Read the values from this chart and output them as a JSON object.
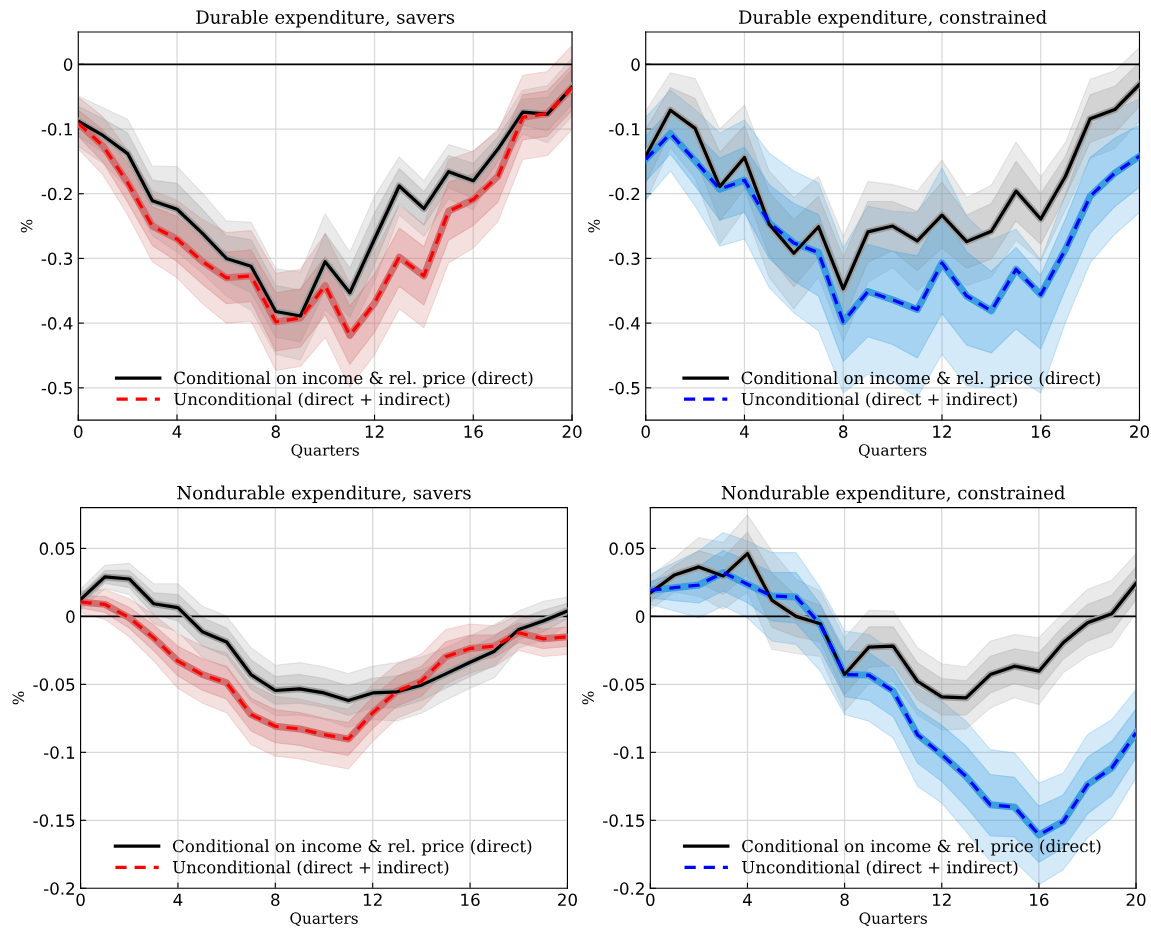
{
  "chart_data": [
    {
      "type": "line",
      "title": "Durable expenditure, savers",
      "xlabel": "Quarters",
      "ylabel": "%",
      "x": [
        0,
        1,
        2,
        3,
        4,
        5,
        6,
        7,
        8,
        9,
        10,
        11,
        12,
        13,
        14,
        15,
        16,
        17,
        18,
        19,
        20
      ],
      "xlim": [
        0,
        20
      ],
      "xticks": [
        0,
        4,
        8,
        12,
        16,
        20
      ],
      "ylim": [
        -0.55,
        0.05
      ],
      "yticks": [
        -0.5,
        -0.4,
        -0.3,
        -0.2,
        -0.1,
        0
      ],
      "grid": true,
      "legend": "bottom",
      "ref_lines": [
        {
          "axis": "y",
          "value": 0,
          "color": "#000000"
        }
      ],
      "series": [
        {
          "color": "#a0a0a0",
          "values": [
            -0.088,
            -0.11,
            -0.138,
            -0.211,
            -0.224,
            -0.26,
            -0.3,
            -0.312,
            -0.382,
            -0.389,
            -0.305,
            -0.353,
            -0.27,
            -0.188,
            -0.223,
            -0.166,
            -0.18,
            -0.131,
            -0.074,
            -0.077,
            -0.035
          ],
          "lower": [
            -0.127,
            -0.153,
            -0.191,
            -0.265,
            -0.29,
            -0.322,
            -0.358,
            -0.38,
            -0.448,
            -0.457,
            -0.379,
            -0.416,
            -0.336,
            -0.233,
            -0.266,
            -0.208,
            -0.225,
            -0.162,
            -0.108,
            -0.121,
            -0.08
          ],
          "upper": [
            -0.049,
            -0.067,
            -0.085,
            -0.157,
            -0.158,
            -0.198,
            -0.242,
            -0.244,
            -0.316,
            -0.321,
            -0.231,
            -0.29,
            -0.204,
            -0.143,
            -0.18,
            -0.124,
            -0.135,
            -0.1,
            -0.04,
            -0.033,
            0.01
          ]
        },
        {
          "color": "#d07070",
          "values": [
            -0.091,
            -0.126,
            -0.183,
            -0.25,
            -0.27,
            -0.304,
            -0.33,
            -0.327,
            -0.398,
            -0.392,
            -0.342,
            -0.419,
            -0.369,
            -0.298,
            -0.327,
            -0.227,
            -0.209,
            -0.173,
            -0.082,
            -0.076,
            -0.036
          ],
          "lower": [
            -0.131,
            -0.171,
            -0.233,
            -0.305,
            -0.33,
            -0.369,
            -0.4,
            -0.397,
            -0.473,
            -0.467,
            -0.422,
            -0.499,
            -0.449,
            -0.378,
            -0.407,
            -0.307,
            -0.284,
            -0.243,
            -0.147,
            -0.141,
            -0.101
          ],
          "upper": [
            -0.051,
            -0.081,
            -0.133,
            -0.195,
            -0.21,
            -0.239,
            -0.26,
            -0.257,
            -0.323,
            -0.317,
            -0.262,
            -0.339,
            -0.289,
            -0.218,
            -0.247,
            -0.147,
            -0.134,
            -0.103,
            -0.017,
            -0.011,
            0.029
          ]
        },
        {
          "name": "Conditional on income & rel. price (direct)",
          "color": "#000000",
          "line_style": "solid",
          "values": [
            -0.088,
            -0.11,
            -0.138,
            -0.211,
            -0.224,
            -0.26,
            -0.3,
            -0.312,
            -0.382,
            -0.389,
            -0.305,
            -0.353,
            -0.27,
            -0.188,
            -0.223,
            -0.166,
            -0.18,
            -0.131,
            -0.074,
            -0.077,
            -0.035
          ],
          "lower": [
            -0.111,
            -0.136,
            -0.17,
            -0.243,
            -0.264,
            -0.297,
            -0.335,
            -0.353,
            -0.422,
            -0.429,
            -0.349,
            -0.391,
            -0.31,
            -0.215,
            -0.249,
            -0.191,
            -0.207,
            -0.15,
            -0.094,
            -0.103,
            -0.062
          ],
          "upper": [
            -0.065,
            -0.084,
            -0.106,
            -0.179,
            -0.184,
            -0.223,
            -0.265,
            -0.271,
            -0.342,
            -0.349,
            -0.261,
            -0.315,
            -0.23,
            -0.161,
            -0.197,
            -0.141,
            -0.153,
            -0.112,
            -0.054,
            -0.051,
            -0.008
          ]
        },
        {
          "name": "Unconditional (direct + indirect)",
          "color": "#ff0000",
          "line_style": "dashed",
          "values": [
            -0.091,
            -0.126,
            -0.183,
            -0.25,
            -0.27,
            -0.304,
            -0.33,
            -0.327,
            -0.398,
            -0.392,
            -0.342,
            -0.419,
            -0.369,
            -0.298,
            -0.327,
            -0.227,
            -0.209,
            -0.173,
            -0.082,
            -0.076,
            -0.036
          ],
          "lower": [
            -0.111,
            -0.151,
            -0.213,
            -0.28,
            -0.305,
            -0.339,
            -0.37,
            -0.367,
            -0.443,
            -0.437,
            -0.387,
            -0.464,
            -0.414,
            -0.343,
            -0.372,
            -0.272,
            -0.249,
            -0.213,
            -0.117,
            -0.111,
            -0.071
          ],
          "upper": [
            -0.071,
            -0.101,
            -0.153,
            -0.22,
            -0.235,
            -0.269,
            -0.29,
            -0.287,
            -0.353,
            -0.347,
            -0.297,
            -0.374,
            -0.324,
            -0.253,
            -0.282,
            -0.182,
            -0.169,
            -0.133,
            -0.047,
            -0.041,
            -0.001
          ]
        }
      ]
    },
    {
      "type": "line",
      "title": "Durable expenditure, constrained",
      "xlabel": "Quarters",
      "ylabel": "%",
      "x": [
        0,
        1,
        2,
        3,
        4,
        5,
        6,
        7,
        8,
        9,
        10,
        11,
        12,
        13,
        14,
        15,
        16,
        17,
        18,
        19,
        20
      ],
      "xlim": [
        0,
        20
      ],
      "xticks": [
        0,
        4,
        8,
        12,
        16,
        20
      ],
      "ylim": [
        -0.55,
        0.05
      ],
      "yticks": [
        -0.5,
        -0.4,
        -0.3,
        -0.2,
        -0.1,
        0
      ],
      "grid": true,
      "legend": "bottom",
      "ref_lines": [
        {
          "axis": "y",
          "value": 0,
          "color": "#000000"
        }
      ],
      "series": [
        {
          "color": "#a0a0a0",
          "values": [
            -0.142,
            -0.071,
            -0.099,
            -0.189,
            -0.144,
            -0.247,
            -0.292,
            -0.251,
            -0.347,
            -0.259,
            -0.25,
            -0.273,
            -0.233,
            -0.274,
            -0.258,
            -0.196,
            -0.239,
            -0.173,
            -0.084,
            -0.07,
            -0.031
          ],
          "lower": [
            -0.212,
            -0.129,
            -0.176,
            -0.278,
            -0.225,
            -0.329,
            -0.378,
            -0.329,
            -0.428,
            -0.337,
            -0.314,
            -0.35,
            -0.318,
            -0.342,
            -0.329,
            -0.272,
            -0.304,
            -0.225,
            -0.145,
            -0.13,
            -0.088
          ],
          "upper": [
            -0.072,
            -0.013,
            -0.022,
            -0.1,
            -0.063,
            -0.165,
            -0.206,
            -0.173,
            -0.266,
            -0.181,
            -0.186,
            -0.196,
            -0.148,
            -0.206,
            -0.187,
            -0.12,
            -0.174,
            -0.121,
            -0.023,
            -0.01,
            0.026
          ]
        },
        {
          "color": "#3a9ee0",
          "values": [
            -0.147,
            -0.107,
            -0.149,
            -0.193,
            -0.179,
            -0.245,
            -0.276,
            -0.291,
            -0.398,
            -0.351,
            -0.364,
            -0.379,
            -0.307,
            -0.358,
            -0.381,
            -0.317,
            -0.356,
            -0.286,
            -0.204,
            -0.168,
            -0.142
          ],
          "lower": [
            -0.209,
            -0.165,
            -0.219,
            -0.281,
            -0.27,
            -0.345,
            -0.384,
            -0.412,
            -0.508,
            -0.479,
            -0.49,
            -0.515,
            -0.448,
            -0.497,
            -0.5,
            -0.485,
            -0.508,
            -0.399,
            -0.307,
            -0.263,
            -0.229
          ],
          "upper": [
            -0.082,
            -0.04,
            -0.07,
            -0.106,
            -0.086,
            -0.137,
            -0.165,
            -0.183,
            -0.284,
            -0.219,
            -0.227,
            -0.229,
            -0.16,
            -0.235,
            -0.271,
            -0.255,
            -0.302,
            -0.201,
            -0.095,
            -0.07,
            -0.054
          ]
        },
        {
          "name": "Conditional on income & rel. price (direct)",
          "color": "#000000",
          "line_style": "solid",
          "values": [
            -0.142,
            -0.071,
            -0.099,
            -0.189,
            -0.144,
            -0.247,
            -0.292,
            -0.251,
            -0.347,
            -0.259,
            -0.25,
            -0.273,
            -0.233,
            -0.274,
            -0.258,
            -0.196,
            -0.239,
            -0.173,
            -0.084,
            -0.07,
            -0.031
          ],
          "lower": [
            -0.184,
            -0.106,
            -0.145,
            -0.242,
            -0.193,
            -0.296,
            -0.344,
            -0.298,
            -0.396,
            -0.306,
            -0.288,
            -0.319,
            -0.284,
            -0.315,
            -0.301,
            -0.242,
            -0.278,
            -0.204,
            -0.121,
            -0.106,
            -0.065
          ],
          "upper": [
            -0.1,
            -0.036,
            -0.053,
            -0.136,
            -0.095,
            -0.198,
            -0.24,
            -0.204,
            -0.298,
            -0.212,
            -0.212,
            -0.227,
            -0.182,
            -0.233,
            -0.215,
            -0.15,
            -0.2,
            -0.142,
            -0.047,
            -0.034,
            0.003
          ]
        },
        {
          "name": "Unconditional (direct + indirect)",
          "color": "#0000ff",
          "line_style": "dashed",
          "values": [
            -0.147,
            -0.107,
            -0.149,
            -0.193,
            -0.179,
            -0.245,
            -0.276,
            -0.291,
            -0.398,
            -0.351,
            -0.364,
            -0.379,
            -0.307,
            -0.358,
            -0.381,
            -0.317,
            -0.356,
            -0.286,
            -0.204,
            -0.168,
            -0.142
          ],
          "lower": [
            -0.181,
            -0.139,
            -0.188,
            -0.241,
            -0.229,
            -0.3,
            -0.335,
            -0.358,
            -0.459,
            -0.421,
            -0.433,
            -0.454,
            -0.385,
            -0.434,
            -0.446,
            -0.409,
            -0.44,
            -0.348,
            -0.261,
            -0.22,
            -0.19
          ],
          "upper": [
            -0.111,
            -0.07,
            -0.106,
            -0.145,
            -0.128,
            -0.186,
            -0.215,
            -0.232,
            -0.335,
            -0.278,
            -0.289,
            -0.296,
            -0.226,
            -0.29,
            -0.32,
            -0.283,
            -0.326,
            -0.239,
            -0.144,
            -0.114,
            -0.094
          ]
        }
      ]
    },
    {
      "type": "line",
      "title": "Nondurable expenditure, savers",
      "xlabel": "Quarters",
      "ylabel": "%",
      "x": [
        0,
        1,
        2,
        3,
        4,
        5,
        6,
        7,
        8,
        9,
        10,
        11,
        12,
        13,
        14,
        15,
        16,
        17,
        18,
        19,
        20
      ],
      "xlim": [
        0,
        20
      ],
      "xticks": [
        0,
        4,
        8,
        12,
        16,
        20
      ],
      "ylim": [
        -0.2,
        0.08
      ],
      "yticks": [
        -0.2,
        -0.15,
        -0.1,
        -0.05,
        0,
        0.05
      ],
      "grid": true,
      "legend": "bottom",
      "ref_lines": [
        {
          "axis": "y",
          "value": 0,
          "color": "#000000"
        }
      ],
      "series": [
        {
          "color": "#a0a0a0",
          "values": [
            0.0125,
            0.029,
            0.0275,
            0.0093,
            0.0064,
            -0.0113,
            -0.0189,
            -0.0428,
            -0.0545,
            -0.0533,
            -0.0563,
            -0.0619,
            -0.0563,
            -0.0555,
            -0.0506,
            -0.0423,
            -0.0337,
            -0.0256,
            -0.0096,
            -0.0034,
            0.0039
          ],
          "lower": [
            0.005,
            0.0204,
            0.016,
            -0.0054,
            -0.0112,
            -0.0302,
            -0.0378,
            -0.0626,
            -0.073,
            -0.0726,
            -0.0756,
            -0.0818,
            -0.076,
            -0.077,
            -0.0712,
            -0.0616,
            -0.0529,
            -0.0452,
            -0.0232,
            -0.0178,
            -0.0065
          ],
          "upper": [
            0.02,
            0.0376,
            0.039,
            0.024,
            0.024,
            0.0076,
            0.0,
            -0.023,
            -0.036,
            -0.034,
            -0.037,
            -0.042,
            -0.0366,
            -0.034,
            -0.03,
            -0.023,
            -0.0145,
            -0.006,
            0.004,
            0.011,
            0.0143
          ]
        },
        {
          "color": "#d07070",
          "values": [
            0.0106,
            0.0088,
            -0.001,
            -0.0157,
            -0.0329,
            -0.0428,
            -0.0489,
            -0.0722,
            -0.0808,
            -0.0828,
            -0.087,
            -0.0902,
            -0.071,
            -0.055,
            -0.0477,
            -0.0297,
            -0.0236,
            -0.0219,
            -0.012,
            -0.0165,
            -0.015
          ],
          "lower": [
            0.0026,
            -0.0022,
            -0.015,
            -0.0327,
            -0.0529,
            -0.0638,
            -0.0709,
            -0.0942,
            -0.1028,
            -0.1048,
            -0.109,
            -0.1122,
            -0.092,
            -0.075,
            -0.0677,
            -0.0497,
            -0.0416,
            -0.0369,
            -0.025,
            -0.0295,
            -0.028
          ],
          "upper": [
            0.0186,
            0.0198,
            0.013,
            0.0013,
            -0.0129,
            -0.0218,
            -0.0269,
            -0.0502,
            -0.0588,
            -0.0608,
            -0.065,
            -0.0682,
            -0.05,
            -0.035,
            -0.0277,
            -0.0097,
            -0.0056,
            -0.0069,
            0.001,
            -0.0035,
            -0.002
          ]
        },
        {
          "name": "Conditional on income & rel. price (direct)",
          "color": "#000000",
          "line_style": "solid",
          "values": [
            0.0125,
            0.029,
            0.0275,
            0.0093,
            0.0064,
            -0.0113,
            -0.0189,
            -0.0428,
            -0.0545,
            -0.0533,
            -0.0563,
            -0.0619,
            -0.0563,
            -0.0555,
            -0.0506,
            -0.0423,
            -0.0337,
            -0.0256,
            -0.0096,
            -0.0034,
            0.0039
          ],
          "lower": [
            0.0084,
            0.0243,
            0.0212,
            0.0012,
            -0.0033,
            -0.0217,
            -0.0293,
            -0.0537,
            -0.0647,
            -0.0639,
            -0.0669,
            -0.0728,
            -0.0671,
            -0.0673,
            -0.0619,
            -0.0529,
            -0.0443,
            -0.0364,
            -0.0171,
            -0.0113,
            -0.0018
          ],
          "upper": [
            0.0166,
            0.0337,
            0.0338,
            0.0174,
            0.0161,
            -0.0009,
            -0.0085,
            -0.0319,
            -0.0443,
            -0.0427,
            -0.0457,
            -0.051,
            -0.0455,
            -0.0437,
            -0.0393,
            -0.0317,
            -0.0231,
            -0.0148,
            -0.0021,
            0.0045,
            0.0096
          ]
        },
        {
          "name": "Unconditional (direct + indirect)",
          "color": "#ff0000",
          "line_style": "dashed",
          "values": [
            0.0106,
            0.0088,
            -0.001,
            -0.0157,
            -0.0329,
            -0.0428,
            -0.0489,
            -0.0722,
            -0.0808,
            -0.0828,
            -0.087,
            -0.0902,
            -0.071,
            -0.055,
            -0.0477,
            -0.0297,
            -0.0236,
            -0.0219,
            -0.012,
            -0.0165,
            -0.015
          ],
          "lower": [
            0.0062,
            0.0028,
            -0.0087,
            -0.0251,
            -0.0439,
            -0.0544,
            -0.061,
            -0.0843,
            -0.0929,
            -0.0949,
            -0.0991,
            -0.1023,
            -0.0826,
            -0.066,
            -0.0587,
            -0.0407,
            -0.0335,
            -0.0302,
            -0.0192,
            -0.0237,
            -0.0222
          ],
          "upper": [
            0.015,
            0.0148,
            0.0067,
            -0.0063,
            -0.0219,
            -0.0312,
            -0.0368,
            -0.0601,
            -0.0687,
            -0.0707,
            -0.0749,
            -0.0781,
            -0.0594,
            -0.044,
            -0.0367,
            -0.0187,
            -0.0137,
            -0.0136,
            -0.0048,
            -0.0093,
            -0.0078
          ]
        }
      ]
    },
    {
      "type": "line",
      "title": "Nondurable expenditure, constrained",
      "xlabel": "Quarters",
      "ylabel": "%",
      "x": [
        0,
        1,
        2,
        3,
        4,
        5,
        6,
        7,
        8,
        9,
        10,
        11,
        12,
        13,
        14,
        15,
        16,
        17,
        18,
        19,
        20
      ],
      "xlim": [
        0,
        20
      ],
      "xticks": [
        0,
        4,
        8,
        12,
        16,
        20
      ],
      "ylim": [
        -0.2,
        0.08
      ],
      "yticks": [
        -0.2,
        -0.15,
        -0.1,
        -0.05,
        0,
        0.05
      ],
      "grid": true,
      "legend": "bottom",
      "ref_lines": [
        {
          "axis": "y",
          "value": 0,
          "color": "#000000"
        }
      ],
      "series": [
        {
          "color": "#a0a0a0",
          "values": [
            0.0174,
            0.0305,
            0.0364,
            0.0297,
            0.0462,
            0.012,
            0.0,
            -0.0054,
            -0.0428,
            -0.0226,
            -0.0219,
            -0.0477,
            -0.0592,
            -0.06,
            -0.0428,
            -0.0366,
            -0.0403,
            -0.0194,
            -0.0047,
            0.002,
            0.0243
          ],
          "lower": [
            0.0051,
            0.0178,
            0.0148,
            0.0051,
            0.0177,
            -0.0242,
            -0.0273,
            -0.0295,
            -0.0699,
            -0.0496,
            -0.0477,
            -0.0723,
            -0.0835,
            -0.0829,
            -0.0674,
            -0.0599,
            -0.0649,
            -0.0415,
            -0.0293,
            -0.0225,
            0.0024
          ],
          "upper": [
            0.0297,
            0.0432,
            0.058,
            0.0543,
            0.0747,
            0.0482,
            0.0273,
            0.0187,
            -0.0157,
            0.0044,
            0.0039,
            -0.0231,
            -0.0349,
            -0.0371,
            -0.0182,
            -0.0133,
            -0.0157,
            0.0027,
            0.0199,
            0.0265,
            0.0462
          ]
        },
        {
          "color": "#3a9ee0",
          "values": [
            0.0192,
            0.0211,
            0.0231,
            0.0322,
            0.0236,
            0.015,
            0.0143,
            -0.0059,
            -0.0428,
            -0.0432,
            -0.055,
            -0.087,
            -0.1017,
            -0.1177,
            -0.1386,
            -0.1403,
            -0.1607,
            -0.1509,
            -0.1238,
            -0.1115,
            -0.0857
          ],
          "lower": [
            0.0088,
            0.0039,
            -0.001,
            0.0076,
            -0.001,
            -0.0182,
            -0.0206,
            -0.0403,
            -0.0722,
            -0.0771,
            -0.0894,
            -0.125,
            -0.1373,
            -0.1582,
            -0.1803,
            -0.1803,
            -0.1975,
            -0.1864,
            -0.1631,
            -0.1484,
            -0.1189
          ],
          "upper": [
            0.031,
            0.0396,
            0.0482,
            0.0617,
            0.0555,
            0.0469,
            0.0469,
            0.0211,
            -0.0108,
            -0.0133,
            -0.0256,
            -0.0526,
            -0.0624,
            -0.0771,
            -0.098,
            -0.1004,
            -0.1226,
            -0.1152,
            -0.087,
            -0.0759,
            -0.0538
          ]
        },
        {
          "name": "Conditional on income & rel. price (direct)",
          "color": "#000000",
          "line_style": "solid",
          "values": [
            0.0174,
            0.0305,
            0.0364,
            0.0297,
            0.0462,
            0.012,
            0.0,
            -0.0054,
            -0.0428,
            -0.0226,
            -0.0219,
            -0.0477,
            -0.0592,
            -0.06,
            -0.0428,
            -0.0366,
            -0.0403,
            -0.0194,
            -0.0047,
            0.002,
            0.0243
          ],
          "lower": [
            0.0106,
            0.0235,
            0.0245,
            0.0162,
            0.0305,
            -0.0079,
            -0.015,
            -0.0187,
            -0.0577,
            -0.0375,
            -0.0361,
            -0.0612,
            -0.0726,
            -0.0726,
            -0.0563,
            -0.0494,
            -0.0538,
            -0.0316,
            -0.0182,
            -0.0115,
            0.0123
          ],
          "upper": [
            0.0242,
            0.0375,
            0.0483,
            0.0432,
            0.0619,
            0.0319,
            0.015,
            0.0079,
            -0.0279,
            -0.0077,
            -0.0077,
            -0.0342,
            -0.0458,
            -0.0474,
            -0.0293,
            -0.0238,
            -0.0268,
            -0.0072,
            0.0088,
            0.0155,
            0.0363
          ]
        },
        {
          "name": "Unconditional (direct + indirect)",
          "color": "#0000ff",
          "line_style": "dashed",
          "values": [
            0.0192,
            0.0211,
            0.0231,
            0.0322,
            0.0236,
            0.015,
            0.0143,
            -0.0059,
            -0.0428,
            -0.0432,
            -0.055,
            -0.087,
            -0.1017,
            -0.1177,
            -0.1386,
            -0.1403,
            -0.1607,
            -0.1509,
            -0.1238,
            -0.1115,
            -0.0857
          ],
          "lower": [
            0.0135,
            0.0116,
            0.0098,
            0.0187,
            0.0101,
            -0.0033,
            -0.0049,
            -0.0248,
            -0.059,
            -0.0618,
            -0.0739,
            -0.1079,
            -0.1213,
            -0.14,
            -0.1615,
            -0.1623,
            -0.1809,
            -0.1704,
            -0.1454,
            -0.1318,
            -0.104
          ],
          "upper": [
            0.0257,
            0.0313,
            0.0369,
            0.0484,
            0.0411,
            0.0325,
            0.0322,
            0.009,
            -0.0252,
            -0.0268,
            -0.0388,
            -0.0681,
            -0.0801,
            -0.0954,
            -0.1163,
            -0.1184,
            -0.1397,
            -0.1313,
            -0.1036,
            -0.0919,
            -0.0682
          ]
        }
      ]
    }
  ]
}
